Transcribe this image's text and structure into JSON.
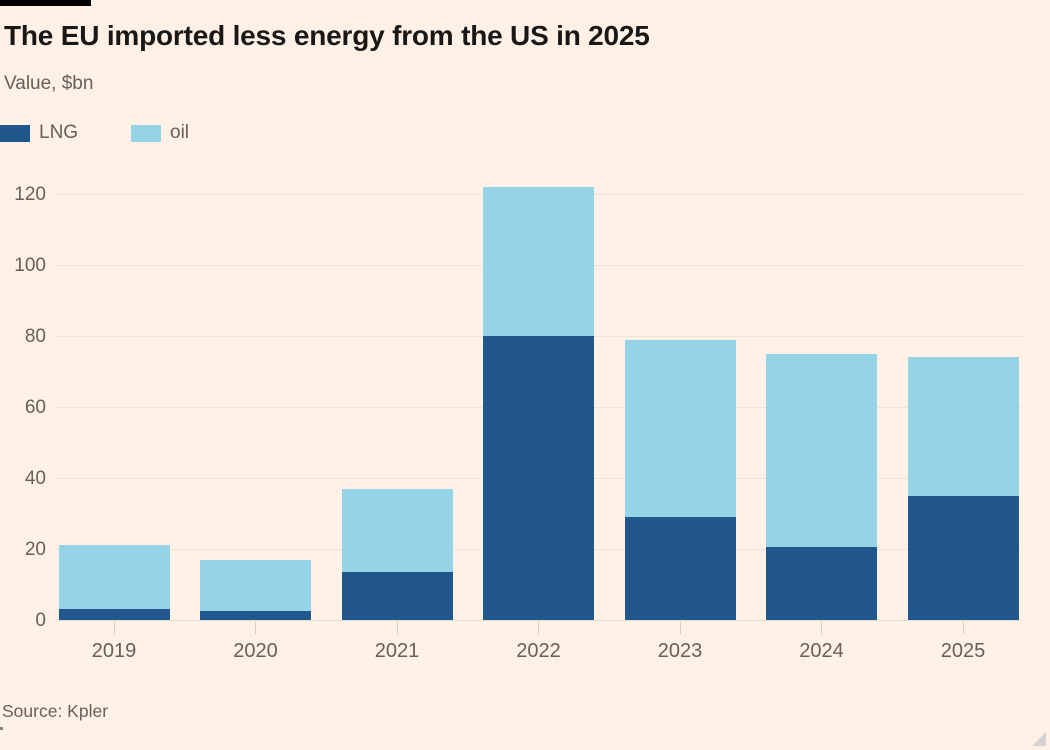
{
  "page": {
    "background_color": "#FFF1E5"
  },
  "header": {
    "title": "The EU imported less energy from the US in 2025",
    "subtitle": "Value, $bn"
  },
  "legend": [
    {
      "label": "LNG",
      "color": "#21578D"
    },
    {
      "label": "oil",
      "color": "#96D3E6"
    }
  ],
  "chart_data": {
    "type": "bar",
    "stacked": true,
    "title": "The EU imported less energy from the US in 2025",
    "subtitle": "Value, $bn",
    "categories": [
      "2019",
      "2020",
      "2021",
      "2022",
      "2023",
      "2024",
      "2025"
    ],
    "series": [
      {
        "name": "LNG",
        "color": "#21578D",
        "values": [
          3,
          2.5,
          13.5,
          80,
          29,
          20.5,
          35
        ]
      },
      {
        "name": "oil",
        "color": "#96D3E6",
        "values": [
          18,
          14.5,
          23.5,
          42,
          50,
          54.5,
          39
        ]
      }
    ],
    "totals": [
      21,
      17,
      37,
      122,
      79,
      75,
      74
    ],
    "xlabel": "",
    "ylabel": "Value, $bn",
    "y_ticks": [
      0,
      20,
      40,
      60,
      80,
      100,
      120
    ],
    "ylim": [
      0,
      128
    ],
    "grid": "horizontal",
    "legend_position": "top-left"
  },
  "footer": {
    "source": "Source: Kpler"
  }
}
